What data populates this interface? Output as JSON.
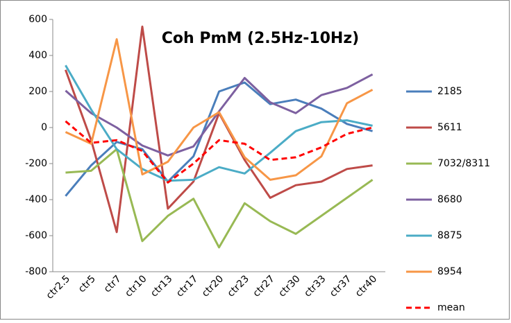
{
  "chart_data": {
    "type": "line",
    "title": "Coh PmM (2.5Hz-10Hz)",
    "categories": [
      "ctr2.5",
      "ctr5",
      "ctr7",
      "ctr10",
      "ctr13",
      "ctr17",
      "ctr20",
      "ctr23",
      "ctr27",
      "ctr30",
      "ctr33",
      "ctr37",
      "ctr40"
    ],
    "ylim": [
      -800,
      600
    ],
    "yticks": [
      -800,
      -600,
      -400,
      -200,
      0,
      200,
      400,
      600
    ],
    "series": [
      {
        "name": "2185",
        "color": "#4a7ebb",
        "values": [
          -380,
          -210,
          -80,
          -120,
          -300,
          -160,
          200,
          250,
          130,
          155,
          105,
          20,
          -20
        ]
      },
      {
        "name": "5611",
        "color": "#be4b48",
        "values": [
          320,
          -70,
          -580,
          560,
          -450,
          -300,
          80,
          -180,
          -390,
          -320,
          -300,
          -230,
          -210
        ]
      },
      {
        "name": "7032/8311",
        "color": "#98b954",
        "values": [
          -250,
          -240,
          -120,
          -630,
          -490,
          -395,
          -665,
          -420,
          -520,
          -590,
          -490,
          -390,
          -290
        ]
      },
      {
        "name": "8680",
        "color": "#7d60a0",
        "values": [
          205,
          80,
          0,
          -100,
          -155,
          -105,
          90,
          275,
          140,
          80,
          180,
          220,
          295
        ]
      },
      {
        "name": "8875",
        "color": "#4bacc6",
        "values": [
          345,
          100,
          -120,
          -230,
          -295,
          -290,
          -220,
          -255,
          -140,
          -20,
          30,
          40,
          10
        ]
      },
      {
        "name": "8954",
        "color": "#f79646",
        "values": [
          -25,
          -90,
          490,
          -260,
          -190,
          0,
          85,
          -165,
          -290,
          -265,
          -160,
          135,
          210
        ]
      },
      {
        "name": "mean",
        "color": "#ff0000",
        "dashed": true,
        "values": [
          35,
          -85,
          -70,
          -130,
          -305,
          -200,
          -70,
          -90,
          -180,
          -165,
          -110,
          -35,
          0
        ]
      }
    ]
  }
}
